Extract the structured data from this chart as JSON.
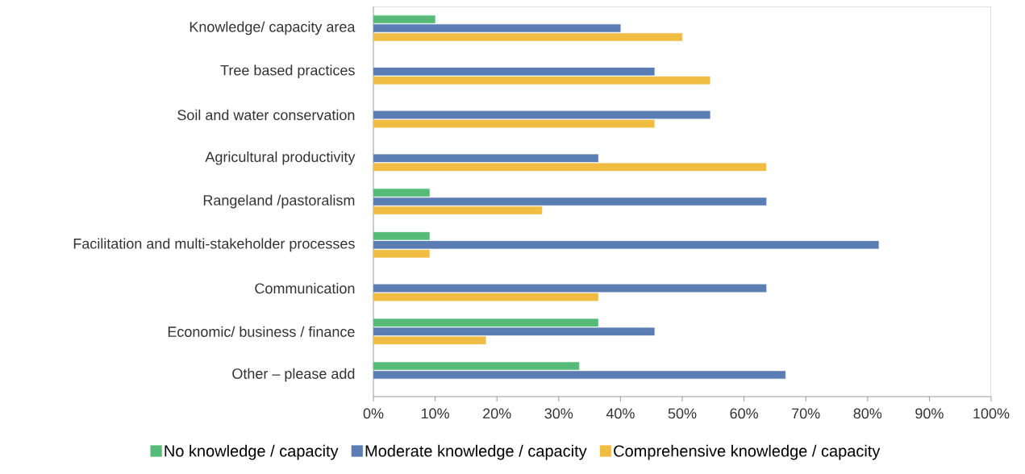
{
  "chart_data": {
    "type": "bar",
    "orientation": "horizontal",
    "categories": [
      "Knowledge/ capacity area",
      "Tree based practices",
      "Soil and water conservation",
      "Agricultural productivity",
      "Rangeland /pastoralism",
      "Facilitation and multi-stakeholder processes",
      "Communication",
      "Economic/ business / finance",
      "Other – please add"
    ],
    "series": [
      {
        "name": "No knowledge / capacity",
        "color": "#55bb77",
        "values": [
          10,
          null,
          null,
          null,
          9.1,
          9.1,
          null,
          36.4,
          33.3
        ]
      },
      {
        "name": "Moderate knowledge / capacity",
        "color": "#5a7db3",
        "values": [
          40,
          45.5,
          54.5,
          36.4,
          63.6,
          81.8,
          63.6,
          45.5,
          66.7
        ]
      },
      {
        "name": "Comprehensive knowledge / capacity",
        "color": "#f0bd42",
        "values": [
          50,
          54.5,
          45.5,
          63.6,
          27.3,
          9.1,
          36.4,
          18.2,
          null
        ]
      }
    ],
    "xlim": [
      0,
      100
    ],
    "xticks": [
      {
        "value": 0,
        "label": "0%"
      },
      {
        "value": 10,
        "label": "10%"
      },
      {
        "value": 20,
        "label": "20%"
      },
      {
        "value": 30,
        "label": "30%"
      },
      {
        "value": 40,
        "label": "40%"
      },
      {
        "value": 50,
        "label": "50%"
      },
      {
        "value": 60,
        "label": "60%"
      },
      {
        "value": 70,
        "label": "70%"
      },
      {
        "value": 80,
        "label": "80%"
      },
      {
        "value": 90,
        "label": "90%"
      },
      {
        "value": 100,
        "label": "100%"
      }
    ],
    "grid": false,
    "legend": "bottom"
  }
}
